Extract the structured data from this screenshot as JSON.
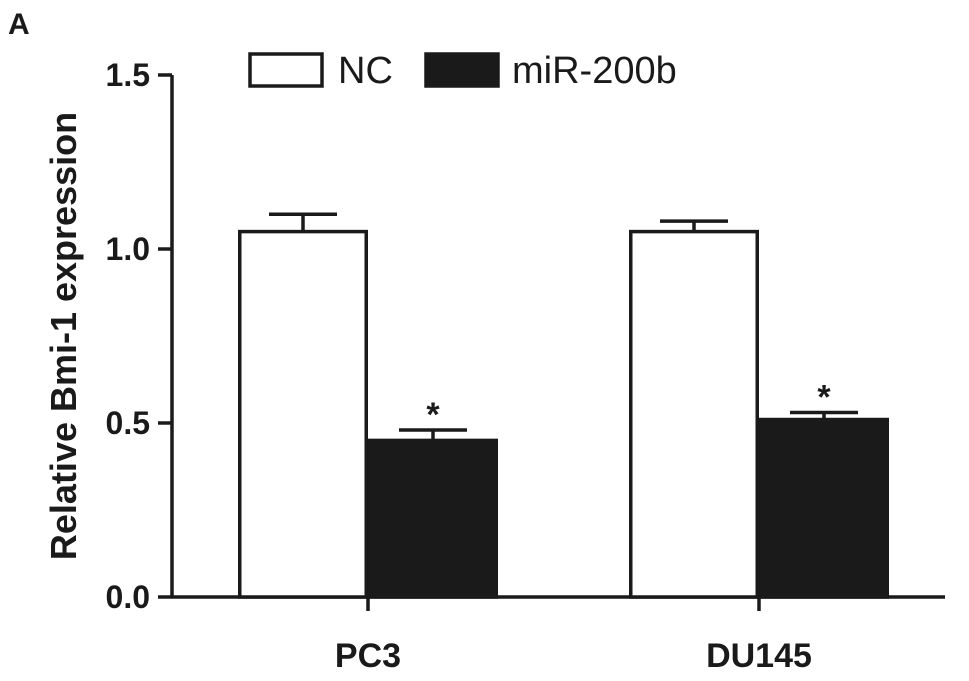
{
  "panel_label": "A",
  "chart_data": {
    "type": "bar",
    "title": "",
    "xlabel": "",
    "ylabel": "Relative Bmi-1 expression",
    "ylim": [
      0,
      1.5
    ],
    "yticks": [
      "0.0",
      "0.5",
      "1.0",
      "1.5"
    ],
    "ytick_values": [
      0,
      0.5,
      1.0,
      1.5
    ],
    "categories": [
      "PC3",
      "DU145"
    ],
    "series": [
      {
        "name": "NC",
        "values": [
          1.05,
          1.05
        ],
        "errors": [
          0.05,
          0.03
        ],
        "fill": "#ffffff",
        "stroke": "#1a1a1a",
        "annotations": [
          "",
          ""
        ]
      },
      {
        "name": "miR-200b",
        "values": [
          0.45,
          0.51
        ],
        "errors": [
          0.03,
          0.02
        ],
        "fill": "#1a1a1a",
        "stroke": "#1a1a1a",
        "annotations": [
          "*",
          "*"
        ]
      }
    ],
    "legend_position": "top",
    "grid": false
  }
}
